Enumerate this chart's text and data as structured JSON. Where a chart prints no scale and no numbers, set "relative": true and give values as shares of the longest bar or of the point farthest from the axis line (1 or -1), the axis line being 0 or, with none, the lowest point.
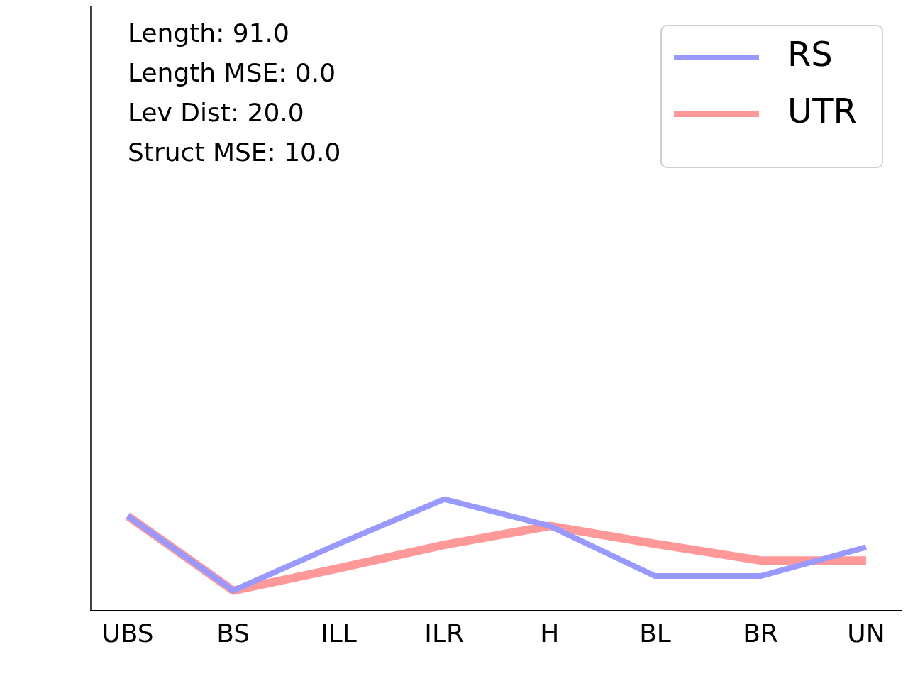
{
  "chart_data": {
    "type": "line",
    "relative": true,
    "categories": [
      "UBS",
      "BS",
      "ILL",
      "ILR",
      "H",
      "BL",
      "BR",
      "UN"
    ],
    "series": [
      {
        "name": "RS",
        "color": "#9999ff",
        "values": [
          0.85,
          0.18,
          0.6,
          1,
          0.76,
          0.31,
          0.31,
          0.57
        ]
      },
      {
        "name": "UTR",
        "color": "#ff9999",
        "values": [
          0.85,
          0.18,
          0.38,
          0.59,
          0.76,
          0.6,
          0.45,
          0.45
        ]
      }
    ],
    "annotations": [
      "Length: 91.0",
      "Length MSE: 0.0",
      "Lev Dist: 20.0",
      "Struct MSE: 10.0"
    ],
    "legend": "top right",
    "grid": false,
    "marker": "none",
    "line_style": "solid"
  }
}
